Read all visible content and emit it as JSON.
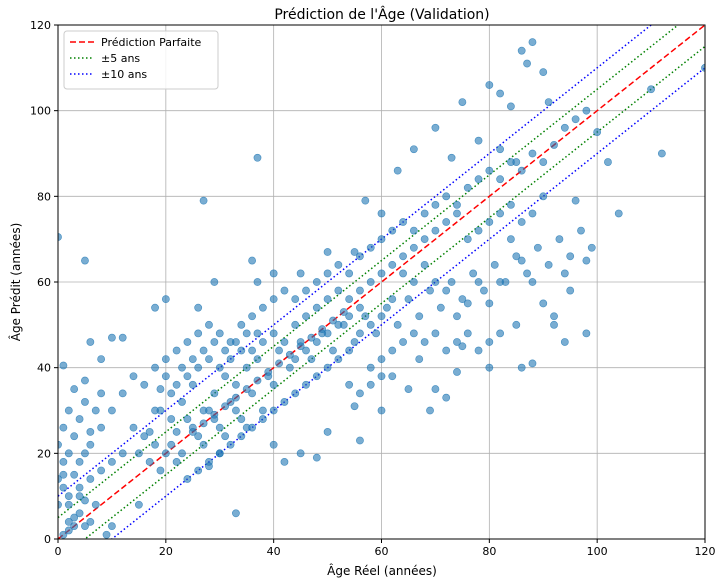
{
  "chart_data": {
    "type": "scatter",
    "title": "Prédiction de l'Âge (Validation)",
    "xlabel": "Âge Réel (années)",
    "ylabel": "Âge Prédit (années)",
    "xlim": [
      0,
      120
    ],
    "ylim": [
      0,
      120
    ],
    "xticks": [
      0,
      20,
      40,
      60,
      80,
      100,
      120
    ],
    "yticks": [
      0,
      20,
      40,
      60,
      80,
      100,
      120
    ],
    "x_tick_labels": [
      "0",
      "20",
      "40",
      "60",
      "80",
      "100",
      "120"
    ],
    "y_tick_labels": [
      "0",
      "20",
      "40",
      "60",
      "80",
      "100",
      "120"
    ],
    "grid": true,
    "legend_position": "top-left",
    "colors": {
      "points": "#1f77b4",
      "perfect": "#ff0000",
      "band5": "#008000",
      "band10": "#0000ff"
    },
    "reference_lines": [
      {
        "name": "Prédiction Parfaite",
        "style": "dashed",
        "color": "#ff0000",
        "offsets": [
          0
        ]
      },
      {
        "name": "±5 ans",
        "style": "dotted",
        "color": "#008000",
        "offsets": [
          5,
          -5
        ]
      },
      {
        "name": "±10 ans",
        "style": "dotted",
        "color": "#0000ff",
        "offsets": [
          10,
          -10
        ]
      }
    ],
    "points_note": "approximate sample of the scatter cloud",
    "points": [
      [
        0,
        70.5
      ],
      [
        5,
        65
      ],
      [
        37,
        89
      ],
      [
        27,
        79
      ],
      [
        1,
        40.5
      ],
      [
        104,
        76
      ],
      [
        112,
        90
      ],
      [
        120,
        110
      ],
      [
        110,
        105
      ],
      [
        98,
        65
      ],
      [
        96,
        79
      ],
      [
        102,
        88
      ],
      [
        86,
        114
      ],
      [
        88,
        116
      ],
      [
        87,
        111
      ],
      [
        86,
        40
      ],
      [
        88,
        41
      ],
      [
        70,
        96
      ],
      [
        75,
        102
      ],
      [
        80,
        106
      ],
      [
        82,
        104
      ],
      [
        84,
        101
      ],
      [
        90,
        109
      ],
      [
        91,
        102
      ],
      [
        82,
        91
      ],
      [
        85,
        88
      ],
      [
        78,
        93
      ],
      [
        73,
        89
      ],
      [
        66,
        91
      ],
      [
        63,
        86
      ],
      [
        60,
        76
      ],
      [
        57,
        79
      ],
      [
        55,
        67
      ],
      [
        50,
        67
      ],
      [
        45,
        62
      ],
      [
        40,
        62
      ],
      [
        37,
        60
      ],
      [
        36,
        65
      ],
      [
        29,
        60
      ],
      [
        26,
        54
      ],
      [
        20,
        56
      ],
      [
        18,
        54
      ],
      [
        12,
        47
      ],
      [
        10,
        47
      ],
      [
        8,
        42
      ],
      [
        6,
        46
      ],
      [
        5,
        37
      ],
      [
        3,
        35
      ],
      [
        2,
        30
      ],
      [
        1,
        26
      ],
      [
        0,
        22
      ],
      [
        1,
        15
      ],
      [
        2,
        10
      ],
      [
        3,
        5
      ],
      [
        2,
        2
      ],
      [
        1,
        1
      ],
      [
        5,
        3
      ],
      [
        9,
        1
      ],
      [
        10,
        3
      ],
      [
        15,
        8
      ],
      [
        33,
        6
      ],
      [
        28,
        17
      ],
      [
        30,
        20
      ],
      [
        40,
        22
      ],
      [
        42,
        18
      ],
      [
        45,
        20
      ],
      [
        50,
        25
      ],
      [
        48,
        19
      ],
      [
        56,
        23
      ],
      [
        55,
        31
      ],
      [
        60,
        30
      ],
      [
        62,
        38
      ],
      [
        65,
        35
      ],
      [
        67,
        42
      ],
      [
        70,
        35
      ],
      [
        72,
        33
      ],
      [
        69,
        30
      ],
      [
        74,
        39
      ],
      [
        75,
        45
      ],
      [
        80,
        40
      ],
      [
        82,
        48
      ],
      [
        85,
        50
      ],
      [
        80,
        55
      ],
      [
        90,
        55
      ],
      [
        92,
        50
      ],
      [
        95,
        58
      ],
      [
        94,
        62
      ],
      [
        92,
        52
      ],
      [
        98,
        48
      ],
      [
        94,
        46
      ],
      [
        88,
        60
      ],
      [
        86,
        65
      ],
      [
        84,
        70
      ],
      [
        82,
        60
      ],
      [
        78,
        60
      ],
      [
        76,
        55
      ],
      [
        74,
        52
      ],
      [
        72,
        58
      ],
      [
        70,
        60
      ],
      [
        68,
        64
      ],
      [
        66,
        60
      ],
      [
        64,
        62
      ],
      [
        62,
        56
      ],
      [
        60,
        52
      ],
      [
        58,
        50
      ],
      [
        56,
        48
      ],
      [
        54,
        44
      ],
      [
        52,
        42
      ],
      [
        50,
        40
      ],
      [
        48,
        38
      ],
      [
        46,
        36
      ],
      [
        44,
        34
      ],
      [
        42,
        32
      ],
      [
        40,
        30
      ],
      [
        38,
        28
      ],
      [
        36,
        26
      ],
      [
        34,
        24
      ],
      [
        32,
        22
      ],
      [
        30,
        20
      ],
      [
        28,
        18
      ],
      [
        26,
        16
      ],
      [
        24,
        14
      ],
      [
        22,
        18
      ],
      [
        20,
        20
      ],
      [
        18,
        22
      ],
      [
        16,
        24
      ],
      [
        14,
        26
      ],
      [
        12,
        20
      ],
      [
        10,
        18
      ],
      [
        8,
        16
      ],
      [
        6,
        14
      ],
      [
        4,
        12
      ],
      [
        2,
        8
      ],
      [
        4,
        18
      ],
      [
        6,
        22
      ],
      [
        8,
        26
      ],
      [
        10,
        30
      ],
      [
        12,
        34
      ],
      [
        14,
        38
      ],
      [
        16,
        36
      ],
      [
        18,
        40
      ],
      [
        20,
        42
      ],
      [
        22,
        44
      ],
      [
        24,
        46
      ],
      [
        26,
        48
      ],
      [
        28,
        50
      ],
      [
        30,
        48
      ],
      [
        32,
        46
      ],
      [
        34,
        50
      ],
      [
        36,
        52
      ],
      [
        38,
        54
      ],
      [
        40,
        56
      ],
      [
        42,
        58
      ],
      [
        44,
        56
      ],
      [
        46,
        58
      ],
      [
        48,
        60
      ],
      [
        50,
        62
      ],
      [
        52,
        64
      ],
      [
        54,
        62
      ],
      [
        56,
        66
      ],
      [
        58,
        68
      ],
      [
        60,
        70
      ],
      [
        62,
        72
      ],
      [
        64,
        74
      ],
      [
        66,
        72
      ],
      [
        68,
        76
      ],
      [
        70,
        78
      ],
      [
        72,
        80
      ],
      [
        74,
        78
      ],
      [
        76,
        82
      ],
      [
        78,
        84
      ],
      [
        80,
        86
      ],
      [
        82,
        84
      ],
      [
        84,
        88
      ],
      [
        86,
        86
      ],
      [
        88,
        90
      ],
      [
        90,
        88
      ],
      [
        92,
        92
      ],
      [
        94,
        96
      ],
      [
        96,
        98
      ],
      [
        98,
        100
      ],
      [
        100,
        95
      ],
      [
        15,
        20
      ],
      [
        17,
        25
      ],
      [
        19,
        30
      ],
      [
        21,
        28
      ],
      [
        23,
        32
      ],
      [
        25,
        36
      ],
      [
        27,
        30
      ],
      [
        29,
        34
      ],
      [
        31,
        38
      ],
      [
        33,
        36
      ],
      [
        35,
        40
      ],
      [
        37,
        42
      ],
      [
        39,
        38
      ],
      [
        41,
        44
      ],
      [
        43,
        40
      ],
      [
        45,
        46
      ],
      [
        47,
        42
      ],
      [
        49,
        48
      ],
      [
        51,
        44
      ],
      [
        53,
        50
      ],
      [
        55,
        46
      ],
      [
        57,
        52
      ],
      [
        59,
        48
      ],
      [
        61,
        54
      ],
      [
        63,
        50
      ],
      [
        65,
        56
      ],
      [
        67,
        52
      ],
      [
        69,
        58
      ],
      [
        71,
        54
      ],
      [
        73,
        60
      ],
      [
        75,
        56
      ],
      [
        77,
        62
      ],
      [
        79,
        58
      ],
      [
        81,
        64
      ],
      [
        83,
        60
      ],
      [
        85,
        66
      ],
      [
        87,
        62
      ],
      [
        89,
        68
      ],
      [
        91,
        64
      ],
      [
        93,
        70
      ],
      [
        95,
        66
      ],
      [
        97,
        72
      ],
      [
        99,
        68
      ],
      [
        25,
        25
      ],
      [
        27,
        27
      ],
      [
        29,
        29
      ],
      [
        31,
        31
      ],
      [
        33,
        33
      ],
      [
        35,
        35
      ],
      [
        37,
        37
      ],
      [
        39,
        39
      ],
      [
        41,
        41
      ],
      [
        43,
        43
      ],
      [
        45,
        45
      ],
      [
        47,
        47
      ],
      [
        49,
        49
      ],
      [
        51,
        51
      ],
      [
        53,
        53
      ],
      [
        22,
        25
      ],
      [
        24,
        28
      ],
      [
        26,
        24
      ],
      [
        28,
        30
      ],
      [
        30,
        26
      ],
      [
        32,
        32
      ],
      [
        34,
        28
      ],
      [
        36,
        34
      ],
      [
        38,
        30
      ],
      [
        40,
        36
      ],
      [
        17,
        18
      ],
      [
        19,
        16
      ],
      [
        21,
        22
      ],
      [
        23,
        20
      ],
      [
        25,
        26
      ],
      [
        27,
        22
      ],
      [
        29,
        28
      ],
      [
        31,
        24
      ],
      [
        33,
        30
      ],
      [
        35,
        26
      ],
      [
        3,
        3
      ],
      [
        4,
        6
      ],
      [
        5,
        9
      ],
      [
        6,
        4
      ],
      [
        7,
        8
      ],
      [
        1,
        12
      ],
      [
        2,
        20
      ],
      [
        3,
        24
      ],
      [
        4,
        28
      ],
      [
        5,
        32
      ],
      [
        0,
        8
      ],
      [
        0,
        14
      ],
      [
        1,
        18
      ],
      [
        2,
        4
      ],
      [
        3,
        15
      ],
      [
        4,
        10
      ],
      [
        5,
        20
      ],
      [
        6,
        25
      ],
      [
        7,
        30
      ],
      [
        8,
        34
      ],
      [
        18,
        30
      ],
      [
        19,
        35
      ],
      [
        20,
        38
      ],
      [
        21,
        34
      ],
      [
        22,
        36
      ],
      [
        23,
        40
      ],
      [
        24,
        38
      ],
      [
        25,
        42
      ],
      [
        26,
        40
      ],
      [
        27,
        44
      ],
      [
        28,
        42
      ],
      [
        29,
        46
      ],
      [
        30,
        40
      ],
      [
        31,
        44
      ],
      [
        32,
        42
      ],
      [
        33,
        46
      ],
      [
        34,
        44
      ],
      [
        35,
        48
      ],
      [
        36,
        44
      ],
      [
        37,
        48
      ],
      [
        44,
        50
      ],
      [
        46,
        52
      ],
      [
        48,
        54
      ],
      [
        50,
        56
      ],
      [
        52,
        58
      ],
      [
        54,
        56
      ],
      [
        56,
        58
      ],
      [
        58,
        60
      ],
      [
        60,
        62
      ],
      [
        62,
        64
      ],
      [
        64,
        66
      ],
      [
        66,
        68
      ],
      [
        68,
        70
      ],
      [
        70,
        72
      ],
      [
        72,
        74
      ],
      [
        74,
        76
      ],
      [
        76,
        70
      ],
      [
        78,
        72
      ],
      [
        80,
        74
      ],
      [
        82,
        76
      ],
      [
        84,
        78
      ],
      [
        86,
        74
      ],
      [
        88,
        76
      ],
      [
        90,
        80
      ],
      [
        58,
        40
      ],
      [
        60,
        42
      ],
      [
        62,
        44
      ],
      [
        64,
        46
      ],
      [
        66,
        48
      ],
      [
        68,
        46
      ],
      [
        70,
        48
      ],
      [
        72,
        44
      ],
      [
        74,
        46
      ],
      [
        76,
        48
      ],
      [
        78,
        44
      ],
      [
        80,
        46
      ],
      [
        54,
        36
      ],
      [
        56,
        34
      ],
      [
        58,
        36
      ],
      [
        60,
        38
      ],
      [
        38,
        46
      ],
      [
        40,
        48
      ],
      [
        42,
        46
      ],
      [
        44,
        42
      ],
      [
        46,
        44
      ],
      [
        48,
        46
      ],
      [
        50,
        48
      ],
      [
        52,
        50
      ],
      [
        54,
        52
      ],
      [
        56,
        54
      ]
    ]
  }
}
